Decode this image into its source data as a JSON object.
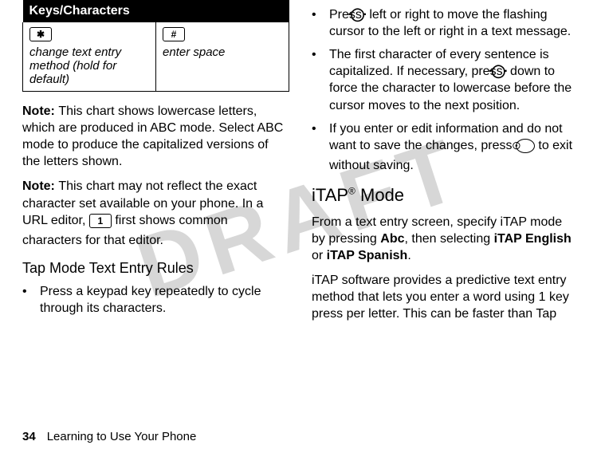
{
  "watermark": "DRAFT",
  "table": {
    "header": "Keys/Characters",
    "row": {
      "left_key": "✱",
      "left_desc": "change text entry method (hold for default)",
      "right_key": "#",
      "right_desc": "enter space"
    }
  },
  "left": {
    "note1_lead": "Note: ",
    "note1": "This chart shows lowercase letters, which are produced in ABC mode. Select ABC mode to produce the capitalized versions of the letters shown.",
    "note2_lead": "Note: ",
    "note2_a": "This chart may not reflect the exact character set available on your phone. In a URL editor, ",
    "note2_key": "1",
    "note2_b": " first shows common characters for that editor.",
    "tap_heading": "Tap Mode Text Entry Rules",
    "bul1": "Press a keypad key repeatedly to cycle through its characters."
  },
  "right": {
    "nav": "·◯·",
    "bul2_a": "Press ",
    "bul2_b": " left or right to move the flashing cursor to the left or right in a text message.",
    "bul3_a": "The first character of every sentence is capitalized. If necessary, press ",
    "bul3_b": " down to force the character to lowercase before the cursor moves to the next position.",
    "bul4_a": "If you enter or edit information and do not want to save the changes, press ",
    "bul4_key": "☉",
    "bul4_b": " to exit without saving.",
    "mode_heading": "iTAP® Mode",
    "p1_a": "From a text entry screen, specify iTAP mode by pressing ",
    "p1_abc": "Abc",
    "p1_b": ", then selecting ",
    "p1_eng": "iTAP English",
    "p1_c": " or ",
    "p1_spa": "iTAP Spanish",
    "p1_d": ".",
    "p2": "iTAP software provides a predictive text entry method that lets you enter a word using 1 key press per letter. This can be faster than Tap"
  },
  "footer": {
    "page": "34",
    "title": "Learning to Use Your Phone"
  },
  "bullet": "•"
}
